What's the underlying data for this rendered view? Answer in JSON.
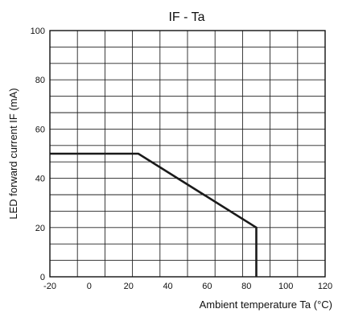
{
  "chart_data": {
    "type": "line",
    "title": "IF - Ta",
    "xlabel": "Ambient temperature Ta (°C)",
    "ylabel": "LED forward current IF (mA)",
    "xlim": [
      -20,
      120
    ],
    "ylim": [
      0,
      100
    ],
    "x_ticks": [
      -20,
      0,
      20,
      40,
      60,
      80,
      100,
      120
    ],
    "y_ticks": [
      0,
      20,
      40,
      60,
      80,
      100
    ],
    "grid": true,
    "series": [
      {
        "x": [
          -20,
          25,
          85,
          85
        ],
        "y": [
          50,
          50,
          20,
          0
        ]
      }
    ]
  },
  "colors": {
    "line": "#1a1a1a",
    "grid": "#222222",
    "background": "#ffffff"
  }
}
